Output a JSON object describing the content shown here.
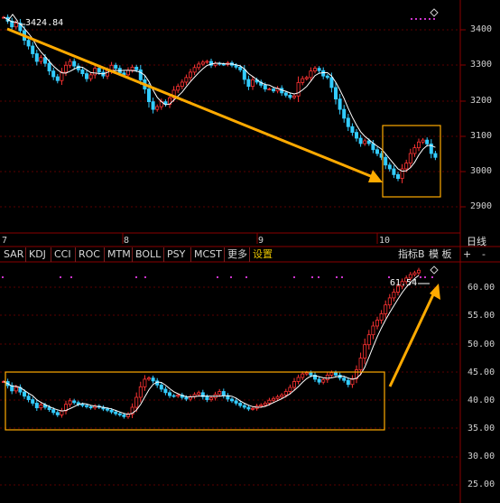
{
  "toolbar": {
    "indicators": [
      "SAR",
      "KDJ",
      "CCI",
      "ROC",
      "MTM",
      "BOLL",
      "PSY",
      "MCST",
      "更多",
      "设置"
    ],
    "active_indicator": "设置",
    "right_label": "指标B",
    "template_label": "模 板",
    "plus_label": "+",
    "minus_label": "-",
    "period_label": "日线"
  },
  "price_axis": [
    "3400",
    "3300",
    "3200",
    "3100",
    "3000",
    "2900"
  ],
  "indicator_axis": [
    "60.00",
    "55.00",
    "50.00",
    "45.00",
    "40.00",
    "35.00",
    "30.00",
    "25.00"
  ],
  "dates": [
    "7",
    "8",
    "9",
    "10"
  ],
  "annotations": {
    "high_price_label": "3424.84",
    "indicator_value_label": "61.54"
  },
  "colors": {
    "background": "#000000",
    "up": "#ff3333",
    "down": "#33ccff",
    "ma": "#ffffff",
    "arrow": "#ffaa00",
    "box": "#ffaa00",
    "marker": "#cc33cc",
    "grid": "#5a0000"
  },
  "chart_data": [
    {
      "type": "candlestick",
      "title": "",
      "ylim": [
        2850,
        3450
      ],
      "yticks": [
        3400,
        3300,
        3200,
        3100,
        3000,
        2900
      ],
      "x_month_labels": [
        "7",
        "8",
        "9",
        "10"
      ],
      "close": [
        3405,
        3395,
        3380,
        3390,
        3370,
        3345,
        3330,
        3310,
        3290,
        3300,
        3285,
        3265,
        3250,
        3240,
        3262,
        3280,
        3290,
        3278,
        3268,
        3258,
        3245,
        3255,
        3272,
        3262,
        3252,
        3266,
        3280,
        3272,
        3260,
        3255,
        3267,
        3275,
        3268,
        3242,
        3218,
        3185,
        3165,
        3172,
        3185,
        3178,
        3195,
        3215,
        3225,
        3236,
        3248,
        3262,
        3274,
        3283,
        3288,
        3290,
        3280,
        3285,
        3283,
        3282,
        3286,
        3280,
        3275,
        3268,
        3243,
        3225,
        3242,
        3236,
        3228,
        3218,
        3218,
        3213,
        3220,
        3208,
        3202,
        3196,
        3200,
        3235,
        3245,
        3248,
        3265,
        3272,
        3266,
        3252,
        3248,
        3222,
        3192,
        3165,
        3142,
        3120,
        3105,
        3090,
        3076,
        3083,
        3076,
        3060,
        3050,
        3040,
        3020,
        3010,
        2995,
        2985,
        3010,
        3025,
        3050,
        3065,
        3080,
        3085,
        3075,
        3050,
        3040
      ]
    },
    {
      "type": "line",
      "title": "",
      "ylim": [
        22.5,
        62.5
      ],
      "yticks": [
        60,
        55,
        50,
        45,
        40,
        35,
        30,
        25
      ],
      "last_value": 61.54,
      "close": [
        42.5,
        41.8,
        40.9,
        41.5,
        40.7,
        40.0,
        39.4,
        38.8,
        38.0,
        38.5,
        38.1,
        37.7,
        37.2,
        36.8,
        37.5,
        38.6,
        39.2,
        38.9,
        38.6,
        38.4,
        38.2,
        38.0,
        38.3,
        38.1,
        37.8,
        37.6,
        37.3,
        37.0,
        36.8,
        36.5,
        36.9,
        38.1,
        39.8,
        41.6,
        42.9,
        43.1,
        42.6,
        41.9,
        41.2,
        40.6,
        40.1,
        40.0,
        40.2,
        39.8,
        39.5,
        39.9,
        40.3,
        40.6,
        39.9,
        39.4,
        39.7,
        40.3,
        40.8,
        40.1,
        39.5,
        39.2,
        38.8,
        38.4,
        38.1,
        37.8,
        37.9,
        38.3,
        38.5,
        38.8,
        39.3,
        39.6,
        39.9,
        40.2,
        40.8,
        41.5,
        42.5,
        43.2,
        43.8,
        44.0,
        43.6,
        42.9,
        42.4,
        42.8,
        43.6,
        44.0,
        43.6,
        43.1,
        42.7,
        42.0,
        43.0,
        44.5,
        46.5,
        48.8,
        50.5,
        52.0,
        53.0,
        54.1,
        55.6,
        56.8,
        57.8,
        58.8,
        59.6,
        60.2,
        60.8,
        61.1,
        61.54
      ]
    }
  ]
}
